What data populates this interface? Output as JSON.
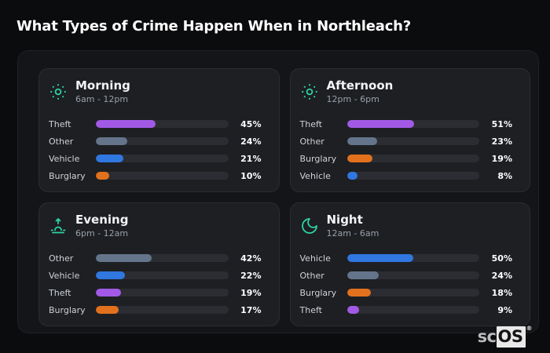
{
  "page": {
    "title": "What Types of Crime Happen When in Northleach?",
    "watermark": {
      "prefix": "sc",
      "suffix": "OS",
      "reg": "®"
    }
  },
  "colors": {
    "page_bg": "#0b0c0e",
    "container_bg": "#141519",
    "card_bg": "#1d1f23",
    "bar_track": "#2b2d32",
    "icon_teal": "#2ed3a3",
    "theft": "#a25ae6",
    "other": "#64748b",
    "vehicle": "#3077e0",
    "burglary": "#e2711d"
  },
  "panels": [
    {
      "icon": "sun-icon",
      "title": "Morning",
      "subtitle": "6am - 12pm",
      "bars": [
        {
          "label": "Theft",
          "value": 45,
          "display": "45%",
          "color": "theft"
        },
        {
          "label": "Other",
          "value": 24,
          "display": "24%",
          "color": "other"
        },
        {
          "label": "Vehicle",
          "value": 21,
          "display": "21%",
          "color": "vehicle"
        },
        {
          "label": "Burglary",
          "value": 10,
          "display": "10%",
          "color": "burglary"
        }
      ]
    },
    {
      "icon": "sun-icon",
      "title": "Afternoon",
      "subtitle": "12pm - 6pm",
      "bars": [
        {
          "label": "Theft",
          "value": 51,
          "display": "51%",
          "color": "theft"
        },
        {
          "label": "Other",
          "value": 23,
          "display": "23%",
          "color": "other"
        },
        {
          "label": "Burglary",
          "value": 19,
          "display": "19%",
          "color": "burglary"
        },
        {
          "label": "Vehicle",
          "value": 8,
          "display": "8%",
          "color": "vehicle"
        }
      ]
    },
    {
      "icon": "sunset-icon",
      "title": "Evening",
      "subtitle": "6pm - 12am",
      "bars": [
        {
          "label": "Other",
          "value": 42,
          "display": "42%",
          "color": "other"
        },
        {
          "label": "Vehicle",
          "value": 22,
          "display": "22%",
          "color": "vehicle"
        },
        {
          "label": "Theft",
          "value": 19,
          "display": "19%",
          "color": "theft"
        },
        {
          "label": "Burglary",
          "value": 17,
          "display": "17%",
          "color": "burglary"
        }
      ]
    },
    {
      "icon": "moon-icon",
      "title": "Night",
      "subtitle": "12am - 6am",
      "bars": [
        {
          "label": "Vehicle",
          "value": 50,
          "display": "50%",
          "color": "vehicle"
        },
        {
          "label": "Other",
          "value": 24,
          "display": "24%",
          "color": "other"
        },
        {
          "label": "Burglary",
          "value": 18,
          "display": "18%",
          "color": "burglary"
        },
        {
          "label": "Theft",
          "value": 9,
          "display": "9%",
          "color": "theft"
        }
      ]
    }
  ],
  "chart_data": [
    {
      "type": "bar",
      "orientation": "horizontal",
      "title": "Morning",
      "subtitle": "6am - 12pm",
      "categories": [
        "Theft",
        "Other",
        "Vehicle",
        "Burglary"
      ],
      "values": [
        45,
        24,
        21,
        10
      ],
      "unit": "%",
      "xlim": [
        0,
        100
      ],
      "grid": false,
      "legend": false
    },
    {
      "type": "bar",
      "orientation": "horizontal",
      "title": "Afternoon",
      "subtitle": "12pm - 6pm",
      "categories": [
        "Theft",
        "Other",
        "Burglary",
        "Vehicle"
      ],
      "values": [
        51,
        23,
        19,
        8
      ],
      "unit": "%",
      "xlim": [
        0,
        100
      ],
      "grid": false,
      "legend": false
    },
    {
      "type": "bar",
      "orientation": "horizontal",
      "title": "Evening",
      "subtitle": "6pm - 12am",
      "categories": [
        "Other",
        "Vehicle",
        "Theft",
        "Burglary"
      ],
      "values": [
        42,
        22,
        19,
        17
      ],
      "unit": "%",
      "xlim": [
        0,
        100
      ],
      "grid": false,
      "legend": false
    },
    {
      "type": "bar",
      "orientation": "horizontal",
      "title": "Night",
      "subtitle": "12am - 6am",
      "categories": [
        "Vehicle",
        "Other",
        "Burglary",
        "Theft"
      ],
      "values": [
        50,
        24,
        18,
        9
      ],
      "unit": "%",
      "xlim": [
        0,
        100
      ],
      "grid": false,
      "legend": false
    }
  ]
}
